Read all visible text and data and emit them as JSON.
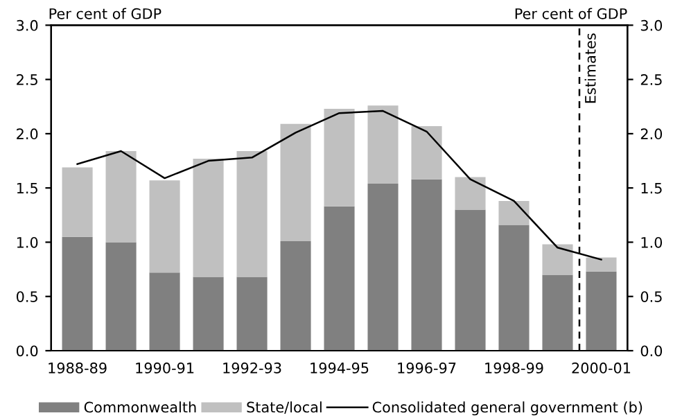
{
  "chart_data": {
    "type": "bar",
    "stacked": true,
    "ylabel": "Per cent of GDP",
    "y2label": "Per cent of GDP",
    "categories": [
      "1988-89",
      null,
      "1990-91",
      null,
      "1992-93",
      null,
      "1994-95",
      null,
      "1996-97",
      null,
      "1998-99",
      null,
      "2000-01"
    ],
    "series": [
      {
        "name": "Commonwealth",
        "color": "#808080",
        "values": [
          1.05,
          1.0,
          0.72,
          0.68,
          0.68,
          1.01,
          1.33,
          1.54,
          1.58,
          1.3,
          1.16,
          0.7,
          0.73
        ]
      },
      {
        "name": "State/local",
        "color": "#c0c0c0",
        "values": [
          0.64,
          0.84,
          0.85,
          1.09,
          1.16,
          1.08,
          0.9,
          0.72,
          0.49,
          0.3,
          0.22,
          0.28,
          0.13
        ]
      },
      {
        "name": "Consolidated general government (b)",
        "type": "line",
        "color": "#000000",
        "values": [
          1.72,
          1.84,
          1.59,
          1.75,
          1.78,
          2.01,
          2.19,
          2.21,
          2.02,
          1.58,
          1.38,
          0.95,
          0.84
        ]
      }
    ],
    "ylim": [
      0,
      3.0
    ],
    "yticks": [
      {
        "value": 0,
        "label": "0.0"
      },
      {
        "value": 0.5,
        "label": "0.5"
      },
      {
        "value": 1.0,
        "label": "1.0"
      },
      {
        "value": 1.5,
        "label": "1.5"
      },
      {
        "value": 2.0,
        "label": "2.0"
      },
      {
        "value": 2.5,
        "label": "2.5"
      },
      {
        "value": 3.0,
        "label": "3.0"
      }
    ],
    "y2lim": [
      0,
      3.0
    ],
    "y2ticks": [
      {
        "value": 0,
        "label": "0.0"
      },
      {
        "value": 0.5,
        "label": "0.5"
      },
      {
        "value": 1.0,
        "label": "1.0"
      },
      {
        "value": 1.5,
        "label": "1.5"
      },
      {
        "value": 2.0,
        "label": "2.0"
      },
      {
        "value": 2.5,
        "label": "2.5"
      },
      {
        "value": 3.0,
        "label": "3.0"
      }
    ],
    "annotations": [
      "Estimates"
    ],
    "legend": "bottom",
    "grid": false
  }
}
